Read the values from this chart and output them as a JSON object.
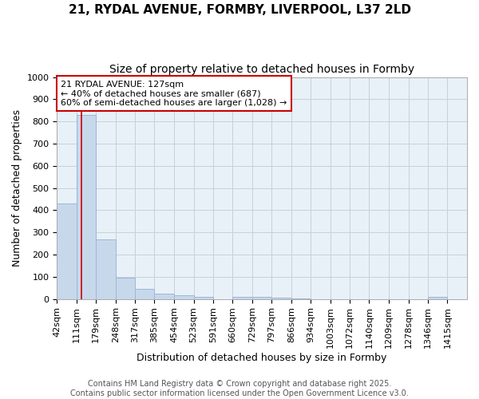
{
  "title_line1": "21, RYDAL AVENUE, FORMBY, LIVERPOOL, L37 2LD",
  "title_line2": "Size of property relative to detached houses in Formby",
  "xlabel": "Distribution of detached houses by size in Formby",
  "ylabel": "Number of detached properties",
  "bin_labels": [
    "42sqm",
    "111sqm",
    "179sqm",
    "248sqm",
    "317sqm",
    "385sqm",
    "454sqm",
    "523sqm",
    "591sqm",
    "660sqm",
    "729sqm",
    "797sqm",
    "866sqm",
    "934sqm",
    "1003sqm",
    "1072sqm",
    "1140sqm",
    "1209sqm",
    "1278sqm",
    "1346sqm",
    "1415sqm"
  ],
  "bin_edges": [
    42,
    111,
    179,
    248,
    317,
    385,
    454,
    523,
    591,
    660,
    729,
    797,
    866,
    934,
    1003,
    1072,
    1140,
    1209,
    1278,
    1346,
    1415,
    1484
  ],
  "counts": [
    430,
    830,
    270,
    95,
    45,
    22,
    15,
    10,
    0,
    10,
    8,
    5,
    3,
    0,
    0,
    0,
    0,
    0,
    0,
    8,
    0
  ],
  "bar_color": "#c8d8eb",
  "bar_edgecolor": "#9ab8d8",
  "property_size": 127,
  "property_label": "21 RYDAL AVENUE: 127sqm",
  "annotation_line2": "← 40% of detached houses are smaller (687)",
  "annotation_line3": "60% of semi-detached houses are larger (1,028) →",
  "vline_color": "#cc0000",
  "annotation_box_edgecolor": "#cc0000",
  "annotation_box_facecolor": "#ffffff",
  "ylim": [
    0,
    1000
  ],
  "yticks": [
    0,
    100,
    200,
    300,
    400,
    500,
    600,
    700,
    800,
    900,
    1000
  ],
  "grid_color": "#c8d0d8",
  "plot_bg_color": "#e8f0f8",
  "fig_bg_color": "#ffffff",
  "footer": "Contains HM Land Registry data © Crown copyright and database right 2025.\nContains public sector information licensed under the Open Government Licence v3.0.",
  "title_fontsize": 11,
  "subtitle_fontsize": 10,
  "tick_fontsize": 8,
  "label_fontsize": 9,
  "annotation_fontsize": 8,
  "footer_fontsize": 7
}
